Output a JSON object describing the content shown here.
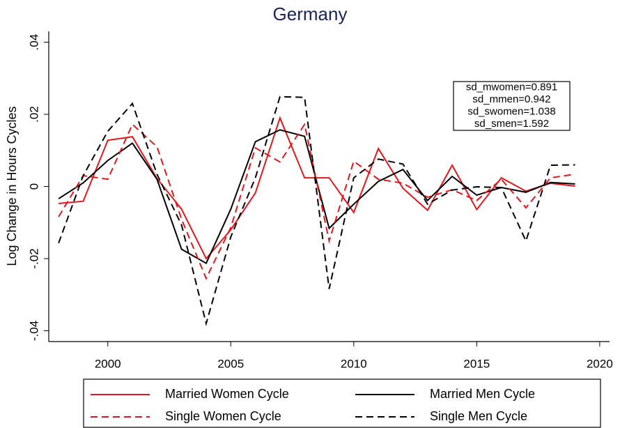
{
  "chart_data": {
    "type": "line",
    "title": "Germany",
    "ylabel": "Log Change in Hours Cycles",
    "x": [
      1998,
      1999,
      2000,
      2001,
      2002,
      2003,
      2004,
      2005,
      2006,
      2007,
      2008,
      2009,
      2010,
      2011,
      2012,
      2013,
      2014,
      2015,
      2016,
      2017,
      2018,
      2019
    ],
    "series": [
      {
        "name": "Married Women Cycle",
        "color": "#e8141b",
        "dashed": false,
        "values": [
          -0.0047,
          -0.0041,
          0.0128,
          0.0138,
          0.0022,
          -0.0063,
          -0.02,
          -0.012,
          -0.0018,
          0.019,
          0.0024,
          0.0024,
          -0.0072,
          0.0105,
          -0.0005,
          -0.0066,
          0.0059,
          -0.0064,
          0.0024,
          -0.0013,
          0.0009,
          0.0001
        ]
      },
      {
        "name": "Married Men Cycle",
        "color": "#000000",
        "dashed": false,
        "values": [
          -0.0034,
          0.001,
          0.0072,
          0.012,
          0.002,
          -0.0174,
          -0.0213,
          -0.0063,
          0.0124,
          0.0157,
          0.0139,
          -0.0116,
          -0.0049,
          0.0014,
          0.0047,
          -0.0039,
          0.0028,
          -0.0024,
          -0.0003,
          -0.0016,
          0.0011,
          0.0007
        ]
      },
      {
        "name": "Single Women Cycle",
        "color": "#e8141b",
        "dashed": true,
        "values": [
          -0.0084,
          0.003,
          0.002,
          0.0172,
          0.011,
          -0.0091,
          -0.0255,
          -0.0114,
          0.0107,
          0.0068,
          0.0172,
          -0.0151,
          0.007,
          0.002,
          0.0009,
          -0.003,
          -0.0009,
          -0.0039,
          0.002,
          -0.0059,
          0.0024,
          0.0034
        ]
      },
      {
        "name": "Single Men Cycle",
        "color": "#000000",
        "dashed": true,
        "values": [
          -0.0157,
          0.003,
          0.0153,
          0.023,
          0.0034,
          -0.0107,
          -0.038,
          -0.014,
          0.0024,
          0.0249,
          0.0247,
          -0.0284,
          0.0024,
          0.0076,
          0.0062,
          -0.0049,
          -0.001,
          -0.0001,
          -0.0003,
          -0.0151,
          0.0059,
          0.006
        ]
      }
    ],
    "xlim": [
      1997.6,
      2020.4
    ],
    "xticks": [
      2000,
      2005,
      2010,
      2015,
      2020
    ],
    "ylim": [
      -0.043,
      0.043
    ],
    "yticks": [
      {
        "value": -0.04,
        "label": "-.04"
      },
      {
        "value": -0.02,
        "label": "-.02"
      },
      0,
      {
        "value": 0.02,
        "label": ".02"
      },
      {
        "value": 0.04,
        "label": ".04"
      }
    ],
    "grid": false,
    "legend": "bottom",
    "annotations": [
      "sd_mwomen=0.891",
      "sd_mmen=0.942",
      "sd_swomen=1.038",
      "sd_smen=1.592"
    ]
  }
}
